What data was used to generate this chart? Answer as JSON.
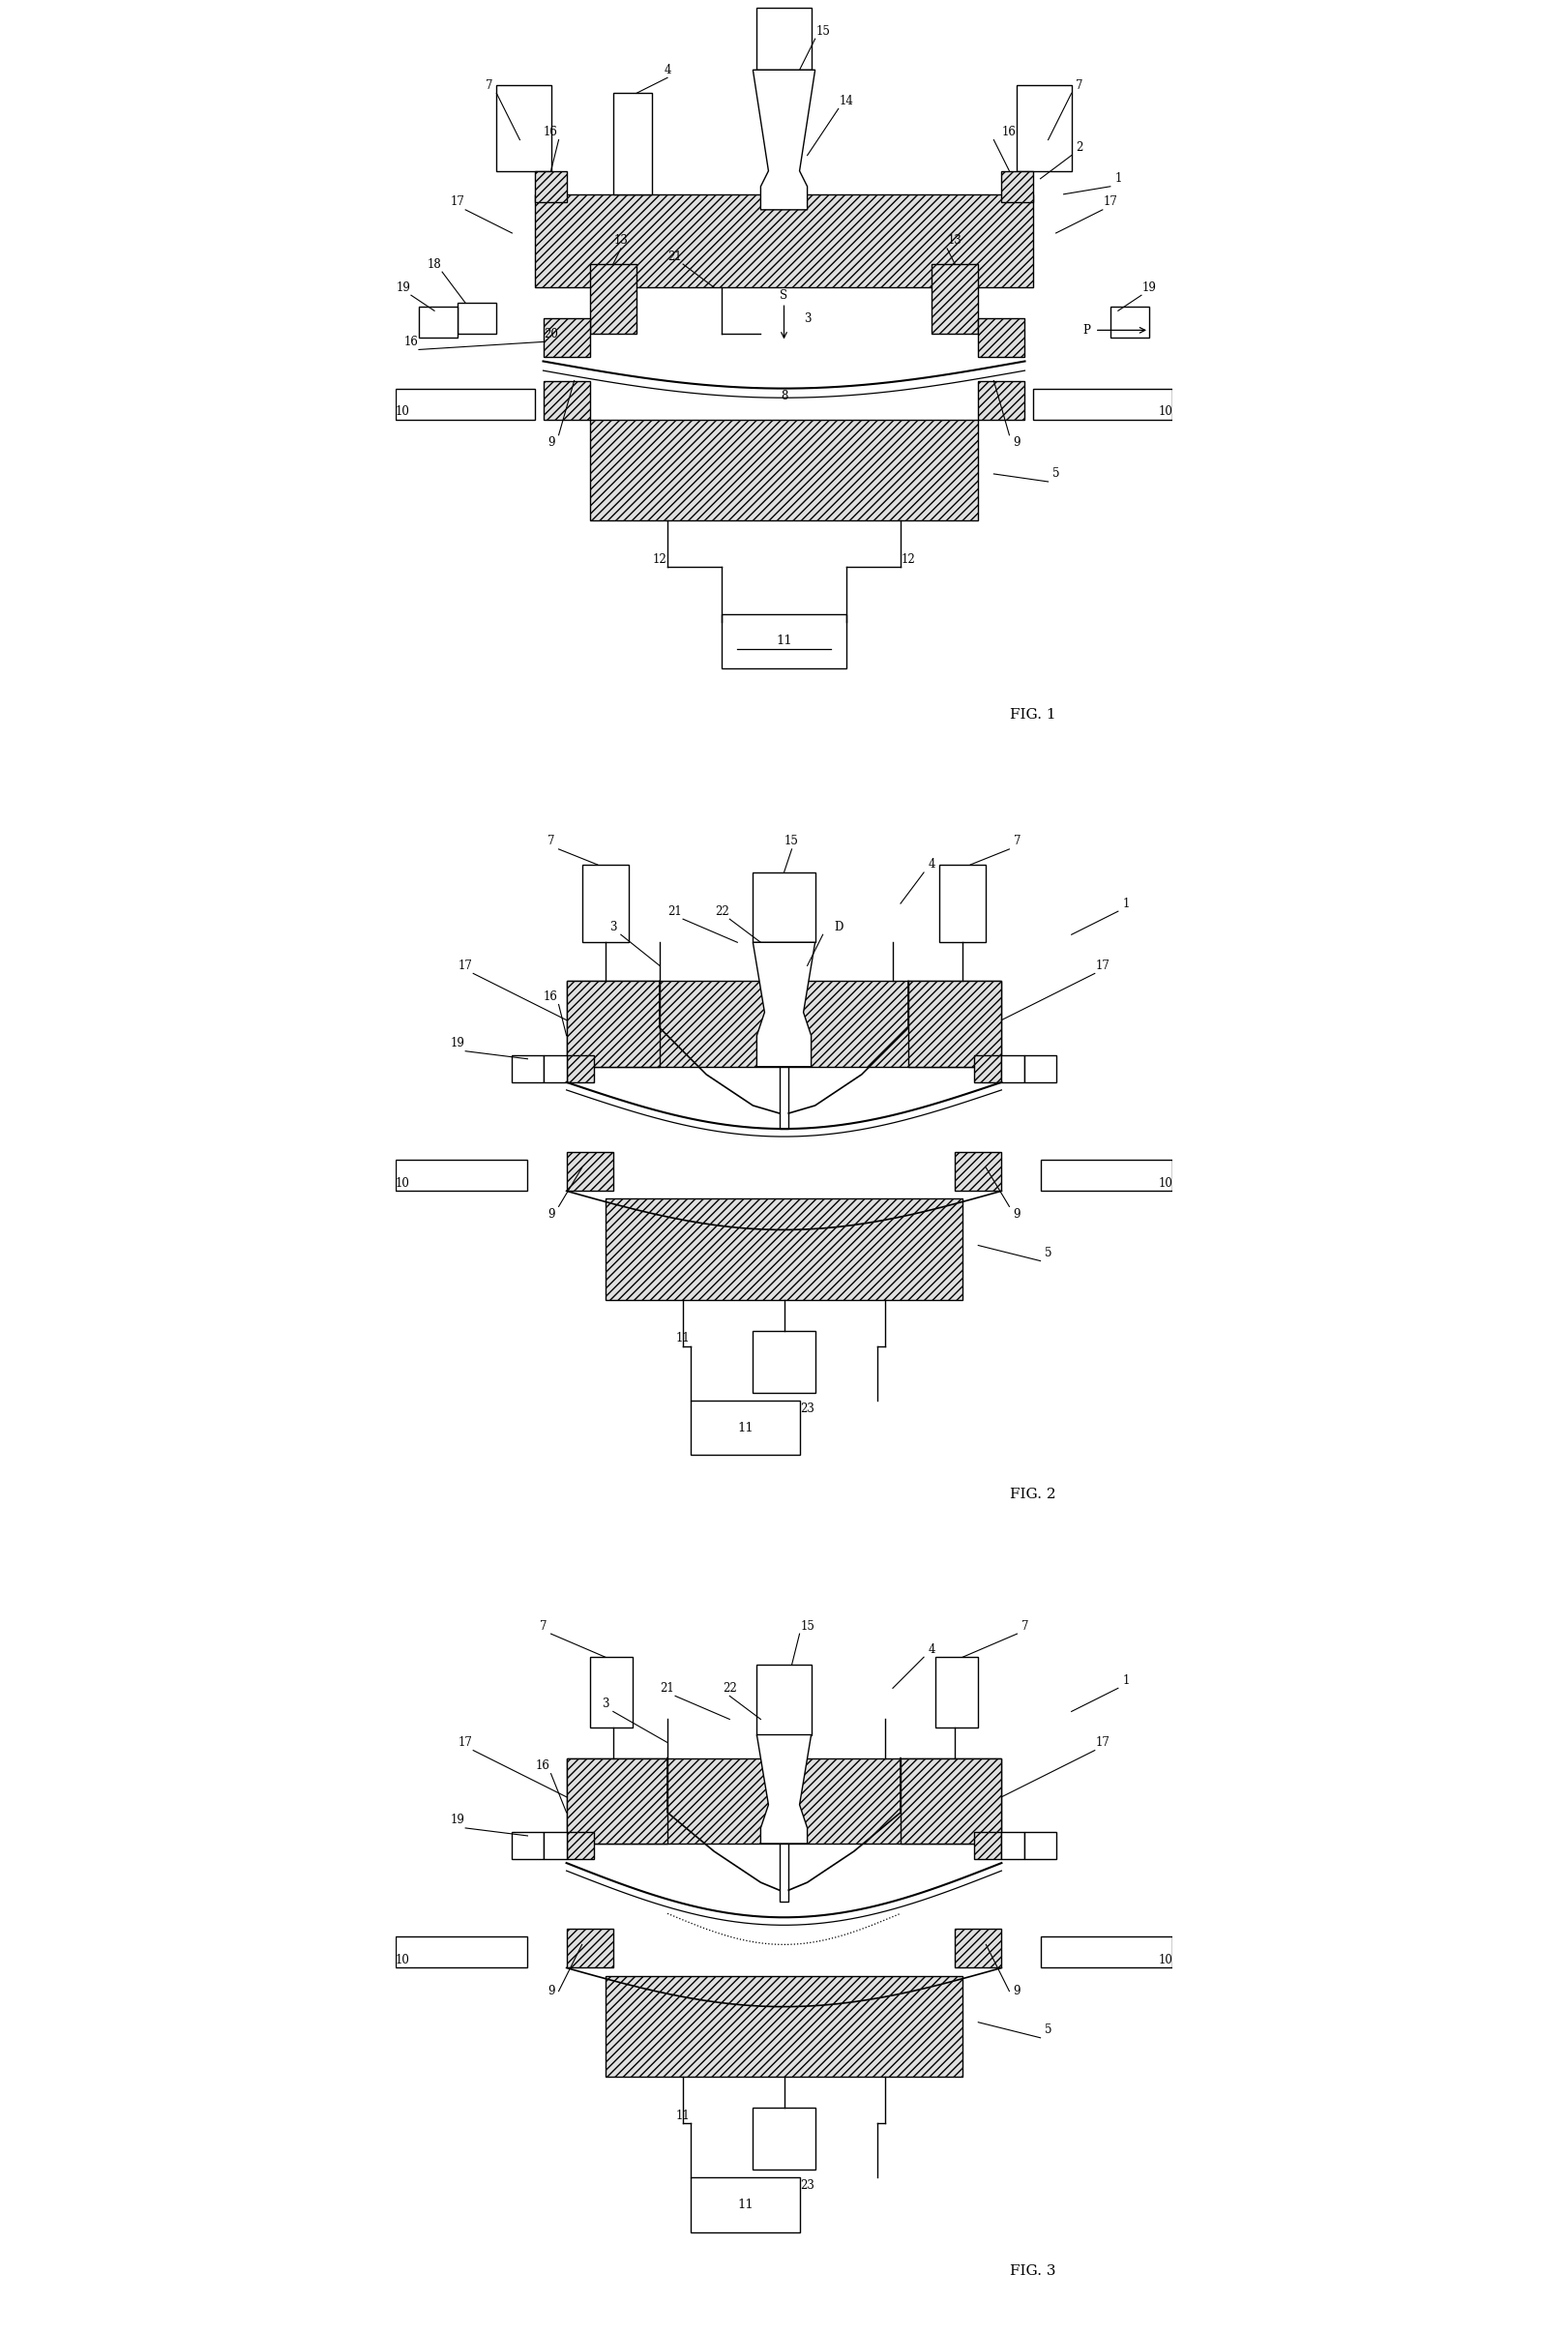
{
  "background_color": "#ffffff",
  "line_color": "#000000",
  "hatch_color": "#555555",
  "hatch_fill": "#e0e0e0",
  "fig1_label": "FIG. 1",
  "fig2_label": "FIG. 2",
  "fig3_label": "FIG. 3"
}
